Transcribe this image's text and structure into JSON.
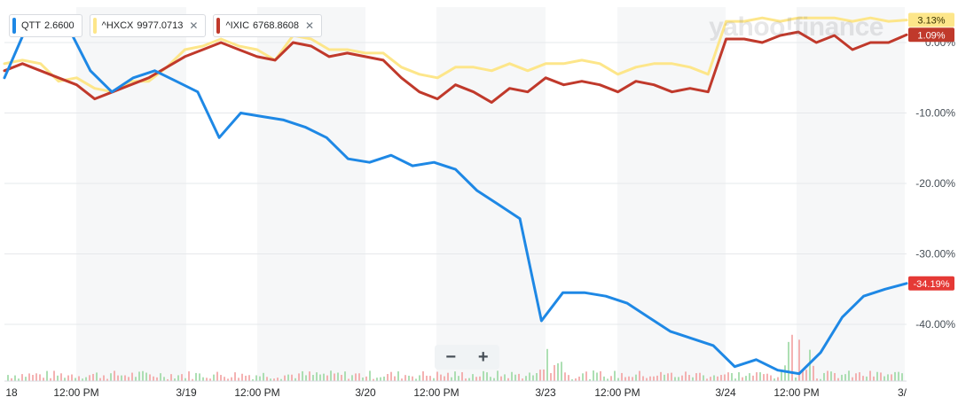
{
  "legend": [
    {
      "symbol": "QTT",
      "value": "2.6600",
      "color": "#1e88e5",
      "closable": false
    },
    {
      "symbol": "^HXCX",
      "value": "9977.0713",
      "color": "#fde68a",
      "closable": true
    },
    {
      "symbol": "^IXIC",
      "value": "6768.8608",
      "color": "#c0392b",
      "closable": true
    }
  ],
  "zoom": {
    "minus": "−",
    "plus": "+"
  },
  "watermark": "yahoo!finance",
  "chart_data": {
    "type": "line",
    "ylim": [
      -50,
      5
    ],
    "y_ticks": [
      {
        "v": 0,
        "label": "0.00%"
      },
      {
        "v": -10,
        "label": "-10.00%"
      },
      {
        "v": -20,
        "label": "-20.00%"
      },
      {
        "v": -30,
        "label": "-30.00%"
      },
      {
        "v": -40,
        "label": "-40.00%"
      }
    ],
    "x_ticks": [
      "18",
      "12:00 PM",
      "3/19",
      "12:00 PM",
      "3/20",
      "12:00 PM",
      "3/23",
      "12:00 PM",
      "3/24",
      "12:00 PM",
      "3/"
    ],
    "series": [
      {
        "name": "^HXCX",
        "color": "#fde68a",
        "end_label": "3.13%",
        "label_bg": "#fde68a",
        "label_fg": "#3a3200",
        "values": [
          -3.0,
          -2.5,
          -3.0,
          -5.5,
          -5.0,
          -6.5,
          -7.0,
          -5.5,
          -5.5,
          -3.5,
          -1.0,
          -0.5,
          0.5,
          -0.5,
          -1.0,
          -2.5,
          1.0,
          0.5,
          -1.0,
          -1.0,
          -1.5,
          -1.5,
          -3.5,
          -4.5,
          -5.0,
          -3.5,
          -3.5,
          -4.0,
          -3.0,
          -4.0,
          -3.0,
          -3.0,
          -2.5,
          -3.0,
          -4.5,
          -3.5,
          -3.0,
          -3.0,
          -3.5,
          -4.5,
          3.0,
          3.0,
          3.5,
          3.0,
          3.5,
          3.5,
          3.5,
          3.0,
          3.5,
          3.0,
          3.2
        ]
      },
      {
        "name": "^IXIC",
        "color": "#c0392b",
        "end_label": "1.09%",
        "label_bg": "#c0392b",
        "label_fg": "#ffffff",
        "values": [
          -4.0,
          -3.0,
          -4.0,
          -5.0,
          -6.0,
          -8.0,
          -7.0,
          -6.0,
          -5.0,
          -3.5,
          -2.0,
          -1.0,
          0.0,
          -1.0,
          -2.0,
          -2.5,
          0.0,
          -0.5,
          -2.0,
          -1.5,
          -2.0,
          -2.5,
          -5.0,
          -7.0,
          -8.0,
          -6.0,
          -7.0,
          -8.5,
          -6.5,
          -7.0,
          -5.0,
          -6.0,
          -5.5,
          -6.0,
          -7.0,
          -5.5,
          -6.0,
          -7.0,
          -6.5,
          -7.0,
          0.5,
          0.5,
          0.0,
          1.0,
          1.5,
          0.0,
          1.0,
          -1.0,
          0.0,
          0.0,
          1.1
        ]
      },
      {
        "name": "QTT",
        "color": "#1e88e5",
        "end_label": "-34.19%",
        "label_bg": "#e53935",
        "label_fg": "#ffffff",
        "values": [
          -5.0,
          2.0,
          3.0,
          2.0,
          -4.0,
          -7.0,
          -5.0,
          -4.0,
          -5.5,
          -7.0,
          -13.5,
          -10.0,
          -10.5,
          -11.0,
          -12.0,
          -13.5,
          -16.5,
          -17.0,
          -16.0,
          -17.5,
          -17.0,
          -18.0,
          -21.0,
          -23.0,
          -25.0,
          -39.5,
          -35.5,
          -35.5,
          -36.0,
          -37.0,
          -39.0,
          -41.0,
          -42.0,
          -43.0,
          -46.0,
          -45.0,
          -46.5,
          -47.0,
          -44.0,
          -39.0,
          -36.0,
          -35.0,
          -34.19
        ]
      }
    ]
  }
}
